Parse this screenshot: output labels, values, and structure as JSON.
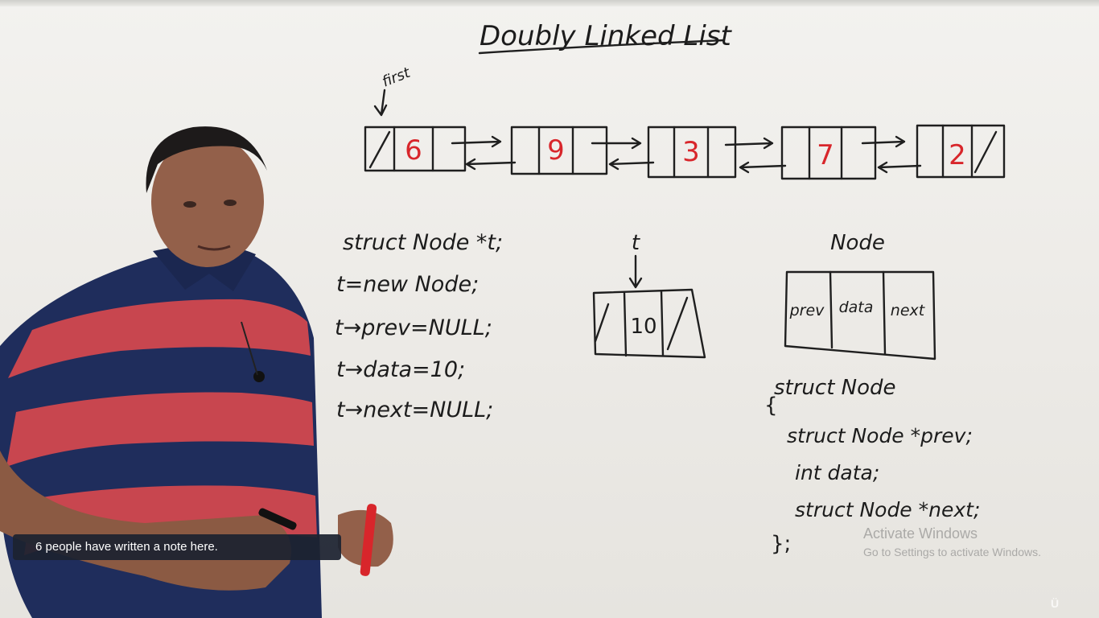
{
  "whiteboard": {
    "title": "Doubly Linked List",
    "first_label": "first",
    "list_nodes": [
      "6",
      "9",
      "3",
      "7",
      "2"
    ],
    "code_left": [
      "struct Node *t;",
      "t=new Node;",
      "t→prev=NULL;",
      "t→data=10;",
      "t→next=NULL;"
    ],
    "t_label": "t",
    "t_node_value": "10",
    "node_label": "Node",
    "node_fields": [
      "prev",
      "data",
      "next"
    ],
    "struct_def": [
      "struct Node",
      "{",
      "struct Node *prev;",
      "int data;",
      "struct Node *next;",
      "};"
    ]
  },
  "overlay": {
    "note_text": "6 people have written a note here."
  },
  "activation": {
    "title": "Activate Windows",
    "subtitle": "Go to Settings to activate Windows."
  },
  "colors": {
    "marker_black": "#1f1f1f",
    "marker_red": "#d8262b",
    "note_bar": "#1c2230"
  },
  "icons": {
    "watermark": "udemy-logo-icon"
  }
}
